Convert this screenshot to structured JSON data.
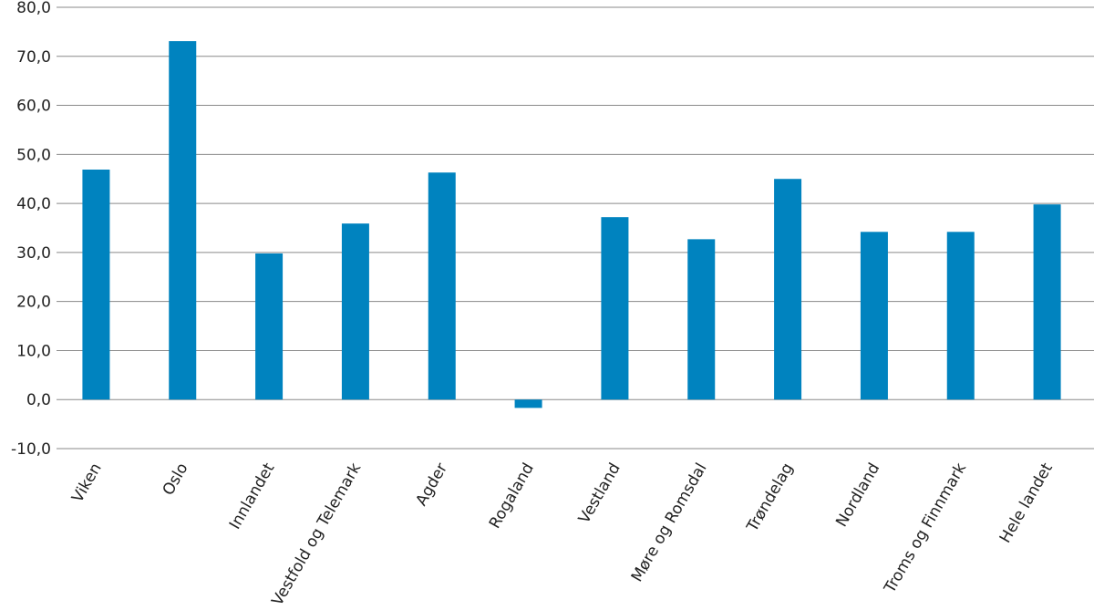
{
  "chart_data": {
    "type": "bar",
    "title": "",
    "xlabel": "",
    "ylabel": "",
    "categories": [
      "Viken",
      "Oslo",
      "Innlandet",
      "Vestfold og Telemark",
      "Agder",
      "Rogaland",
      "Vestland",
      "Møre og Romsdal",
      "Trøndelag",
      "Nordland",
      "Troms og Finnmark",
      "Hele landet"
    ],
    "values": [
      46.9,
      73.1,
      29.8,
      35.9,
      46.3,
      -1.7,
      37.2,
      32.7,
      45.0,
      34.2,
      34.2,
      39.8
    ],
    "ylim": [
      -10,
      80
    ],
    "yticks": [
      "-10,0",
      "0,0",
      "10,0",
      "20,0",
      "30,0",
      "40,0",
      "50,0",
      "60,0",
      "70,0",
      "80,0"
    ],
    "ytick_values": [
      -10,
      0,
      10,
      20,
      30,
      40,
      50,
      60,
      70,
      80
    ],
    "grid": true,
    "bar_color": "#0083bf",
    "grid_color": "#8a8a8a"
  }
}
